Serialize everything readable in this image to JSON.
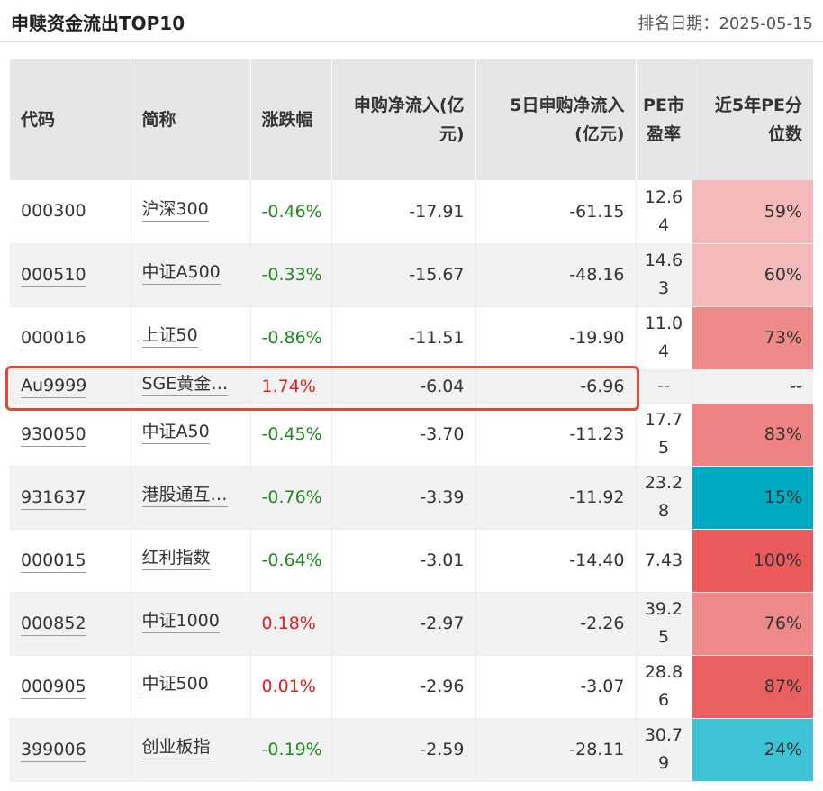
{
  "header": {
    "title": "申赎资金流出TOP10",
    "rank_date": "排名日期：2025-05-15"
  },
  "table": {
    "columns": [
      "代码",
      "简称",
      "涨跌幅",
      "申购净流入(亿元)",
      "5日申购净流入(亿元)",
      "PE市盈率",
      "近5年PE分位数"
    ],
    "rows": [
      {
        "code": "000300",
        "name": "沪深300",
        "change": "-0.46%",
        "direction": "down",
        "net_inflow": "-17.91",
        "net_inflow_5d": "-61.15",
        "pe": "12.64",
        "pe_percentile": "59%",
        "pct_color": "#f4baba"
      },
      {
        "code": "000510",
        "name": "中证A500",
        "change": "-0.33%",
        "direction": "down",
        "net_inflow": "-15.67",
        "net_inflow_5d": "-48.16",
        "pe": "14.63",
        "pe_percentile": "60%",
        "pct_color": "#f4baba"
      },
      {
        "code": "000016",
        "name": "上证50",
        "change": "-0.86%",
        "direction": "down",
        "net_inflow": "-11.51",
        "net_inflow_5d": "-19.90",
        "pe": "11.04",
        "pe_percentile": "73%",
        "pct_color": "#ef8a8a"
      },
      {
        "code": "Au9999",
        "name": "SGE黄金…",
        "change": "1.74%",
        "direction": "up",
        "net_inflow": "-6.04",
        "net_inflow_5d": "-6.96",
        "pe": "--",
        "pe_percentile": "--",
        "pct_color": "#f2f2f2"
      },
      {
        "code": "930050",
        "name": "中证A50",
        "change": "-0.45%",
        "direction": "down",
        "net_inflow": "-3.70",
        "net_inflow_5d": "-11.23",
        "pe": "17.75",
        "pe_percentile": "83%",
        "pct_color": "#ef8282"
      },
      {
        "code": "931637",
        "name": "港股通互…",
        "change": "-0.76%",
        "direction": "down",
        "net_inflow": "-3.39",
        "net_inflow_5d": "-11.92",
        "pe": "23.28",
        "pe_percentile": "15%",
        "pct_color": "#00aac2"
      },
      {
        "code": "000015",
        "name": "红利指数",
        "change": "-0.64%",
        "direction": "down",
        "net_inflow": "-3.01",
        "net_inflow_5d": "-14.40",
        "pe": "7.43",
        "pe_percentile": "100%",
        "pct_color": "#ea5a5a"
      },
      {
        "code": "000852",
        "name": "中证1000",
        "change": "0.18%",
        "direction": "up",
        "net_inflow": "-2.97",
        "net_inflow_5d": "-2.26",
        "pe": "39.25",
        "pe_percentile": "76%",
        "pct_color": "#ef8888"
      },
      {
        "code": "000905",
        "name": "中证500",
        "change": "0.01%",
        "direction": "up",
        "net_inflow": "-2.96",
        "net_inflow_5d": "-3.07",
        "pe": "28.86",
        "pe_percentile": "87%",
        "pct_color": "#ea5f5f"
      },
      {
        "code": "399006",
        "name": "创业板指",
        "change": "-0.19%",
        "direction": "down",
        "net_inflow": "-2.59",
        "net_inflow_5d": "-28.11",
        "pe": "30.79",
        "pe_percentile": "24%",
        "pct_color": "#3cc3d6"
      }
    ]
  }
}
